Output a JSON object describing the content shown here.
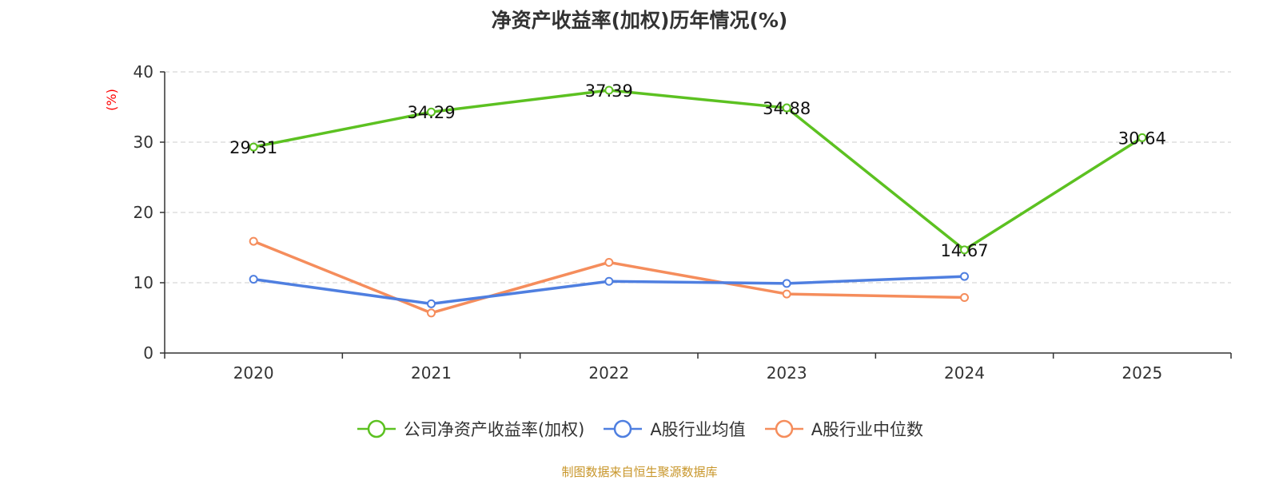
{
  "chart_data": {
    "type": "line",
    "title": "净资产收益率(加权)历年情况(%)",
    "ylabel": "(%)",
    "xlabel": "",
    "categories": [
      "2020",
      "2021",
      "2022",
      "2023",
      "2024",
      "2025"
    ],
    "ylim": [
      0,
      40
    ],
    "yticks": [
      0,
      10,
      20,
      30,
      40
    ],
    "grid": true,
    "legend_position": "bottom",
    "series": [
      {
        "name": "公司净资产收益率(加权)",
        "color": "#5cc121",
        "values": [
          29.31,
          34.29,
          37.39,
          34.88,
          14.67,
          30.64
        ],
        "labels": [
          "29.31",
          "34.29",
          "37.39",
          "34.88",
          "14.67",
          "30.64"
        ],
        "show_labels": true
      },
      {
        "name": "A股行业均值",
        "color": "#4f7fe0",
        "values": [
          10.5,
          7.0,
          10.2,
          9.9,
          10.9,
          null
        ],
        "show_labels": false
      },
      {
        "name": "A股行业中位数",
        "color": "#f58d5c",
        "values": [
          15.9,
          5.7,
          12.9,
          8.4,
          7.9,
          null
        ],
        "show_labels": false
      }
    ]
  },
  "source_note": "制图数据来自恒生聚源数据库"
}
